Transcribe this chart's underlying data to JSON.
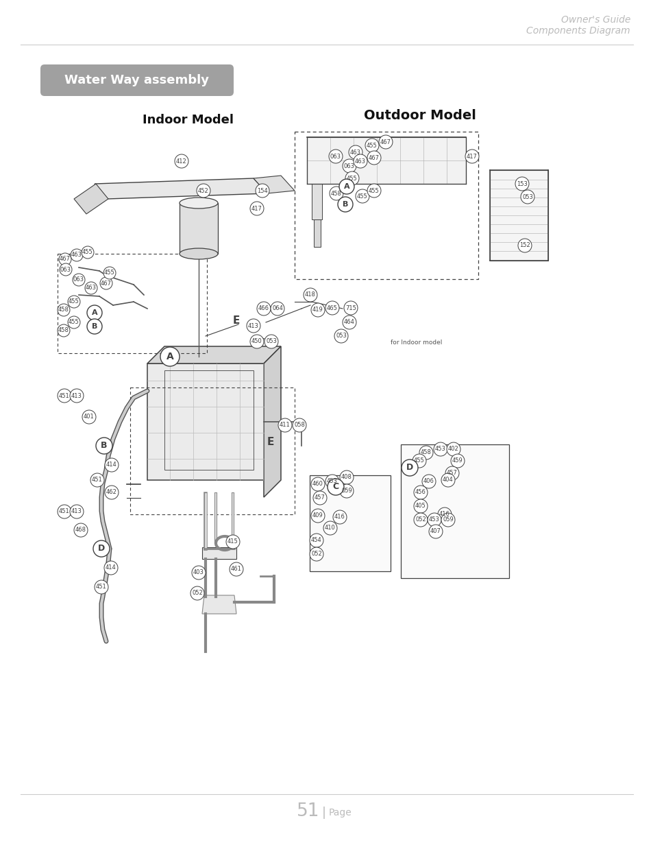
{
  "page_title_line1": "Owner's Guide",
  "page_title_line2": "Components Diagram",
  "section_title": "Water Way assembly",
  "left_model_label": "Indoor Model",
  "right_model_label": "Outdoor Model",
  "page_number": "51",
  "page_label": "Page",
  "bg_color": "#ffffff",
  "title_color": "#bbbbbb",
  "section_bg": "#a0a0a0",
  "section_text_color": "#ffffff",
  "line_color": "#404040",
  "label_color": "#404040",
  "footer_line_color": "#cccccc",
  "header_line_color": "#cccccc",
  "figsize": [
    9.54,
    12.35
  ],
  "dpi": 100
}
